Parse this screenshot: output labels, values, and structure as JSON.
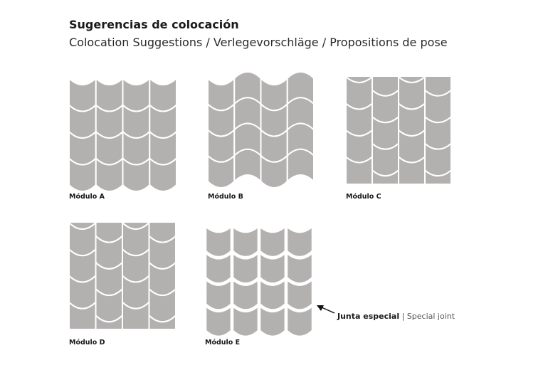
{
  "title": "Sugerencias de colocación",
  "subtitle": "Colocation Suggestions  / Verlegevorschläge /  Propositions de pose",
  "modules": [
    {
      "label": "Módulo A"
    },
    {
      "label": "Módulo B"
    },
    {
      "label": "Módulo C"
    },
    {
      "label": "Módulo D"
    },
    {
      "label": "Módulo E"
    }
  ],
  "annotation": {
    "label": "Junta especial",
    "translation": "| Special joint"
  }
}
